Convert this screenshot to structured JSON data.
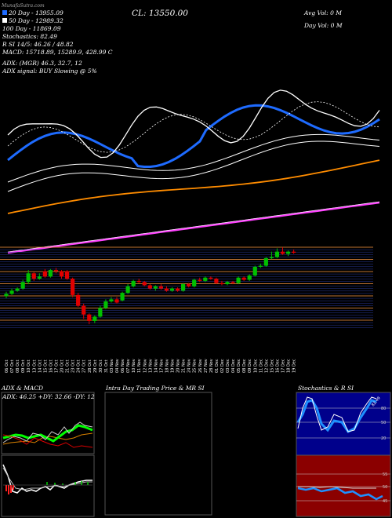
{
  "header": {
    "strip": "MunafaSutra.com",
    "close": "CL: 13550.00",
    "avg_vol": "Avg Vol: 0   M",
    "day_vol": "Day Vol: 0   M"
  },
  "legend": {
    "ema20": "20  Day  -  13955.09",
    "ema50": "50  Day  -  12989.32",
    "ema100": "100  Day  -  11869.09",
    "stochastics": "Stochastics: 82.49",
    "rsi": "R           SI 14/5: 46.26  /  48.82",
    "macd": "MACD: 15718.89,  15289.9,  428.99 C",
    "adx": "ADX:                           (MGR) 46.3,  32.7,  12",
    "adx_signal": "ADX   signal:                    BUY Slowing @ 5%",
    "colors": {
      "ema20": "#1e6bff",
      "ema50": "#ffffff",
      "ema100": "#ff8c00",
      "ema200": "#ff40ff"
    }
  },
  "dates": [
    "06 Oct",
    "07 Oct",
    "08 Oct",
    "09 Oct",
    "10 Oct",
    "13 Oct",
    "14 Oct",
    "15 Oct",
    "16 Oct",
    "17 Oct",
    "20 Oct",
    "21 Oct",
    "23 Oct",
    "24 Oct",
    "27 Oct",
    "28 Oct",
    "29 Oct",
    "30 Oct",
    "31 Oct",
    "03 Nov",
    "04 Nov",
    "06 Nov",
    "07 Nov",
    "10 Nov",
    "11 Nov",
    "12 Nov",
    "13 Nov",
    "14 Nov",
    "17 Nov",
    "18 Nov",
    "19 Nov",
    "20 Nov",
    "21 Nov",
    "24 Nov",
    "25 Nov",
    "26 Nov",
    "27 Nov",
    "28 Nov",
    "01 Dec",
    "02 Dec",
    "03 Dec",
    "04 Dec",
    "05 Dec",
    "08 Dec",
    "09 Dec",
    "10 Dec",
    "11 Dec",
    "12 Dec",
    "15 Dec",
    "16 Dec",
    "17 Dec",
    "18 Dec",
    "19 Dec"
  ],
  "panels": {
    "adx_macd": "ADX  & MACD",
    "adx_values": "ADX: 46.25  +DY: 32.66  -DY: 12",
    "intraday": "Intra  Day Trading Price  & MR                    SI",
    "stoch": "Stochastics & R                    SI"
  },
  "chart_data": {
    "type": "candlestick",
    "dates_ref": "dates",
    "candles": [
      {
        "o": 31,
        "c": 33,
        "h": 35,
        "l": 29
      },
      {
        "o": 33,
        "c": 36,
        "h": 38,
        "l": 32
      },
      {
        "o": 36,
        "c": 38,
        "h": 39,
        "l": 35
      },
      {
        "o": 38,
        "c": 44,
        "h": 46,
        "l": 37
      },
      {
        "o": 44,
        "c": 52,
        "h": 55,
        "l": 42
      },
      {
        "o": 52,
        "c": 47,
        "h": 53,
        "l": 45
      },
      {
        "o": 47,
        "c": 49,
        "h": 52,
        "l": 46
      },
      {
        "o": 54,
        "c": 49,
        "h": 56,
        "l": 48
      },
      {
        "o": 49,
        "c": 55,
        "h": 56,
        "l": 48
      },
      {
        "o": 55,
        "c": 54,
        "h": 57,
        "l": 52
      },
      {
        "o": 54,
        "c": 49,
        "h": 55,
        "l": 47
      },
      {
        "o": 54,
        "c": 47,
        "h": 55,
        "l": 46
      },
      {
        "o": 47,
        "c": 32,
        "h": 48,
        "l": 30
      },
      {
        "o": 32,
        "c": 22,
        "h": 34,
        "l": 21
      },
      {
        "o": 22,
        "c": 14,
        "h": 24,
        "l": 10
      },
      {
        "o": 14,
        "c": 8,
        "h": 15,
        "l": 5
      },
      {
        "o": 8,
        "c": 12,
        "h": 13,
        "l": 6
      },
      {
        "o": 12,
        "c": 20,
        "h": 22,
        "l": 11
      },
      {
        "o": 20,
        "c": 26,
        "h": 28,
        "l": 19
      },
      {
        "o": 26,
        "c": 28,
        "h": 30,
        "l": 25
      },
      {
        "o": 28,
        "c": 25,
        "h": 30,
        "l": 24
      },
      {
        "o": 27,
        "c": 34,
        "h": 35,
        "l": 26
      },
      {
        "o": 34,
        "c": 40,
        "h": 42,
        "l": 33
      },
      {
        "o": 40,
        "c": 45,
        "h": 46,
        "l": 39
      },
      {
        "o": 45,
        "c": 44,
        "h": 47,
        "l": 43
      },
      {
        "o": 44,
        "c": 41,
        "h": 45,
        "l": 40
      },
      {
        "o": 41,
        "c": 38,
        "h": 42,
        "l": 37
      },
      {
        "o": 38,
        "c": 40,
        "h": 41,
        "l": 36
      },
      {
        "o": 40,
        "c": 38,
        "h": 42,
        "l": 37
      },
      {
        "o": 38,
        "c": 36,
        "h": 40,
        "l": 35
      },
      {
        "o": 36,
        "c": 38,
        "h": 39,
        "l": 35
      },
      {
        "o": 38,
        "c": 36,
        "h": 39,
        "l": 35
      },
      {
        "o": 36,
        "c": 42,
        "h": 43,
        "l": 35
      },
      {
        "o": 42,
        "c": 40,
        "h": 43,
        "l": 39
      },
      {
        "o": 40,
        "c": 46,
        "h": 47,
        "l": 39
      },
      {
        "o": 46,
        "c": 45,
        "h": 48,
        "l": 44
      },
      {
        "o": 45,
        "c": 48,
        "h": 49,
        "l": 44
      },
      {
        "o": 48,
        "c": 47,
        "h": 49,
        "l": 46
      },
      {
        "o": 47,
        "c": 43,
        "h": 48,
        "l": 42
      },
      {
        "o": 43,
        "c": 42,
        "h": 45,
        "l": 41
      },
      {
        "o": 42,
        "c": 44,
        "h": 45,
        "l": 41
      },
      {
        "o": 44,
        "c": 43,
        "h": 45,
        "l": 42
      },
      {
        "o": 43,
        "c": 48,
        "h": 49,
        "l": 42
      },
      {
        "o": 48,
        "c": 46,
        "h": 49,
        "l": 45
      },
      {
        "o": 46,
        "c": 50,
        "h": 51,
        "l": 45
      },
      {
        "o": 50,
        "c": 58,
        "h": 59,
        "l": 49
      },
      {
        "o": 58,
        "c": 59,
        "h": 61,
        "l": 57
      },
      {
        "o": 59,
        "c": 66,
        "h": 67,
        "l": 58
      },
      {
        "o": 66,
        "c": 67,
        "h": 72,
        "l": 65
      },
      {
        "o": 67,
        "c": 72,
        "h": 75,
        "l": 66
      },
      {
        "o": 72,
        "c": 70,
        "h": 76,
        "l": 69
      },
      {
        "o": 70,
        "c": 72,
        "h": 73,
        "l": 68
      },
      {
        "o": 72,
        "c": 71,
        "h": 74,
        "l": 70
      }
    ]
  }
}
